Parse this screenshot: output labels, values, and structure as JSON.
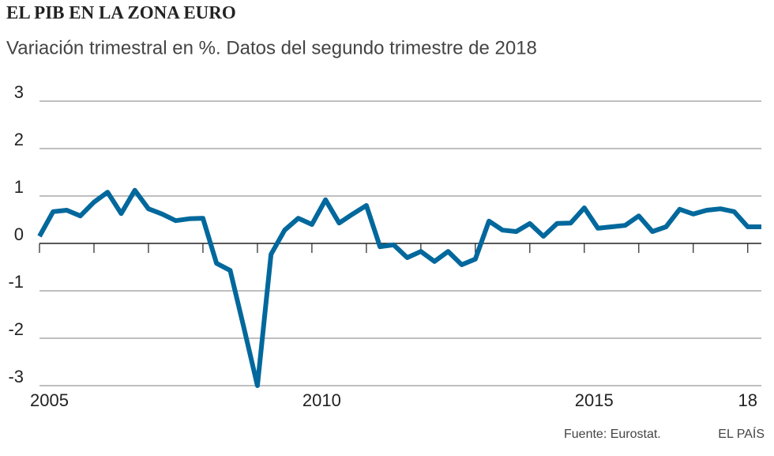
{
  "chart_data": {
    "type": "line",
    "title": "EL PIB EN LA ZONA EURO",
    "subtitle": "Variación trimestral en %. Datos del segundo trimestre de 2018",
    "source": "Fuente: Eurostat.",
    "brand": "EL PAÍS",
    "x": [
      2005,
      2005.25,
      2005.5,
      2005.75,
      2006,
      2006.25,
      2006.5,
      2006.75,
      2007,
      2007.25,
      2007.5,
      2007.75,
      2008,
      2008.25,
      2008.5,
      2008.75,
      2009,
      2009.25,
      2009.5,
      2009.75,
      2010,
      2010.25,
      2010.5,
      2010.75,
      2011,
      2011.25,
      2011.5,
      2011.75,
      2012,
      2012.25,
      2012.5,
      2012.75,
      2013,
      2013.25,
      2013.5,
      2013.75,
      2014,
      2014.25,
      2014.5,
      2014.75,
      2015,
      2015.25,
      2015.5,
      2015.75,
      2016,
      2016.25,
      2016.5,
      2016.75,
      2017,
      2017.25,
      2017.5,
      2017.75,
      2018,
      2018.25
    ],
    "series": [
      {
        "name": "PIB",
        "color": "#00689c",
        "values": [
          0.15,
          0.67,
          0.7,
          0.58,
          0.87,
          1.08,
          0.63,
          1.12,
          0.73,
          0.62,
          0.48,
          0.52,
          0.53,
          -0.42,
          -0.57,
          -1.77,
          -3.0,
          -0.23,
          0.28,
          0.53,
          0.4,
          0.92,
          0.43,
          0.62,
          0.8,
          -0.07,
          -0.03,
          -0.3,
          -0.17,
          -0.38,
          -0.17,
          -0.45,
          -0.33,
          0.47,
          0.28,
          0.25,
          0.42,
          0.15,
          0.42,
          0.43,
          0.75,
          0.32,
          0.35,
          0.38,
          0.58,
          0.25,
          0.35,
          0.72,
          0.62,
          0.7,
          0.73,
          0.67,
          0.35,
          0.35
        ]
      }
    ],
    "xlim": [
      2005,
      2018.25
    ],
    "xticks": [
      2005,
      2010,
      2015,
      {
        "value": 2018,
        "label": "18"
      }
    ],
    "minor_xticks": [
      2006,
      2007,
      2008,
      2009,
      2011,
      2012,
      2013,
      2014,
      2016,
      2017
    ],
    "ylim": [
      -3,
      3
    ],
    "yticks": [
      -3,
      -2,
      -1,
      0,
      1,
      2,
      3
    ],
    "grid": true
  }
}
